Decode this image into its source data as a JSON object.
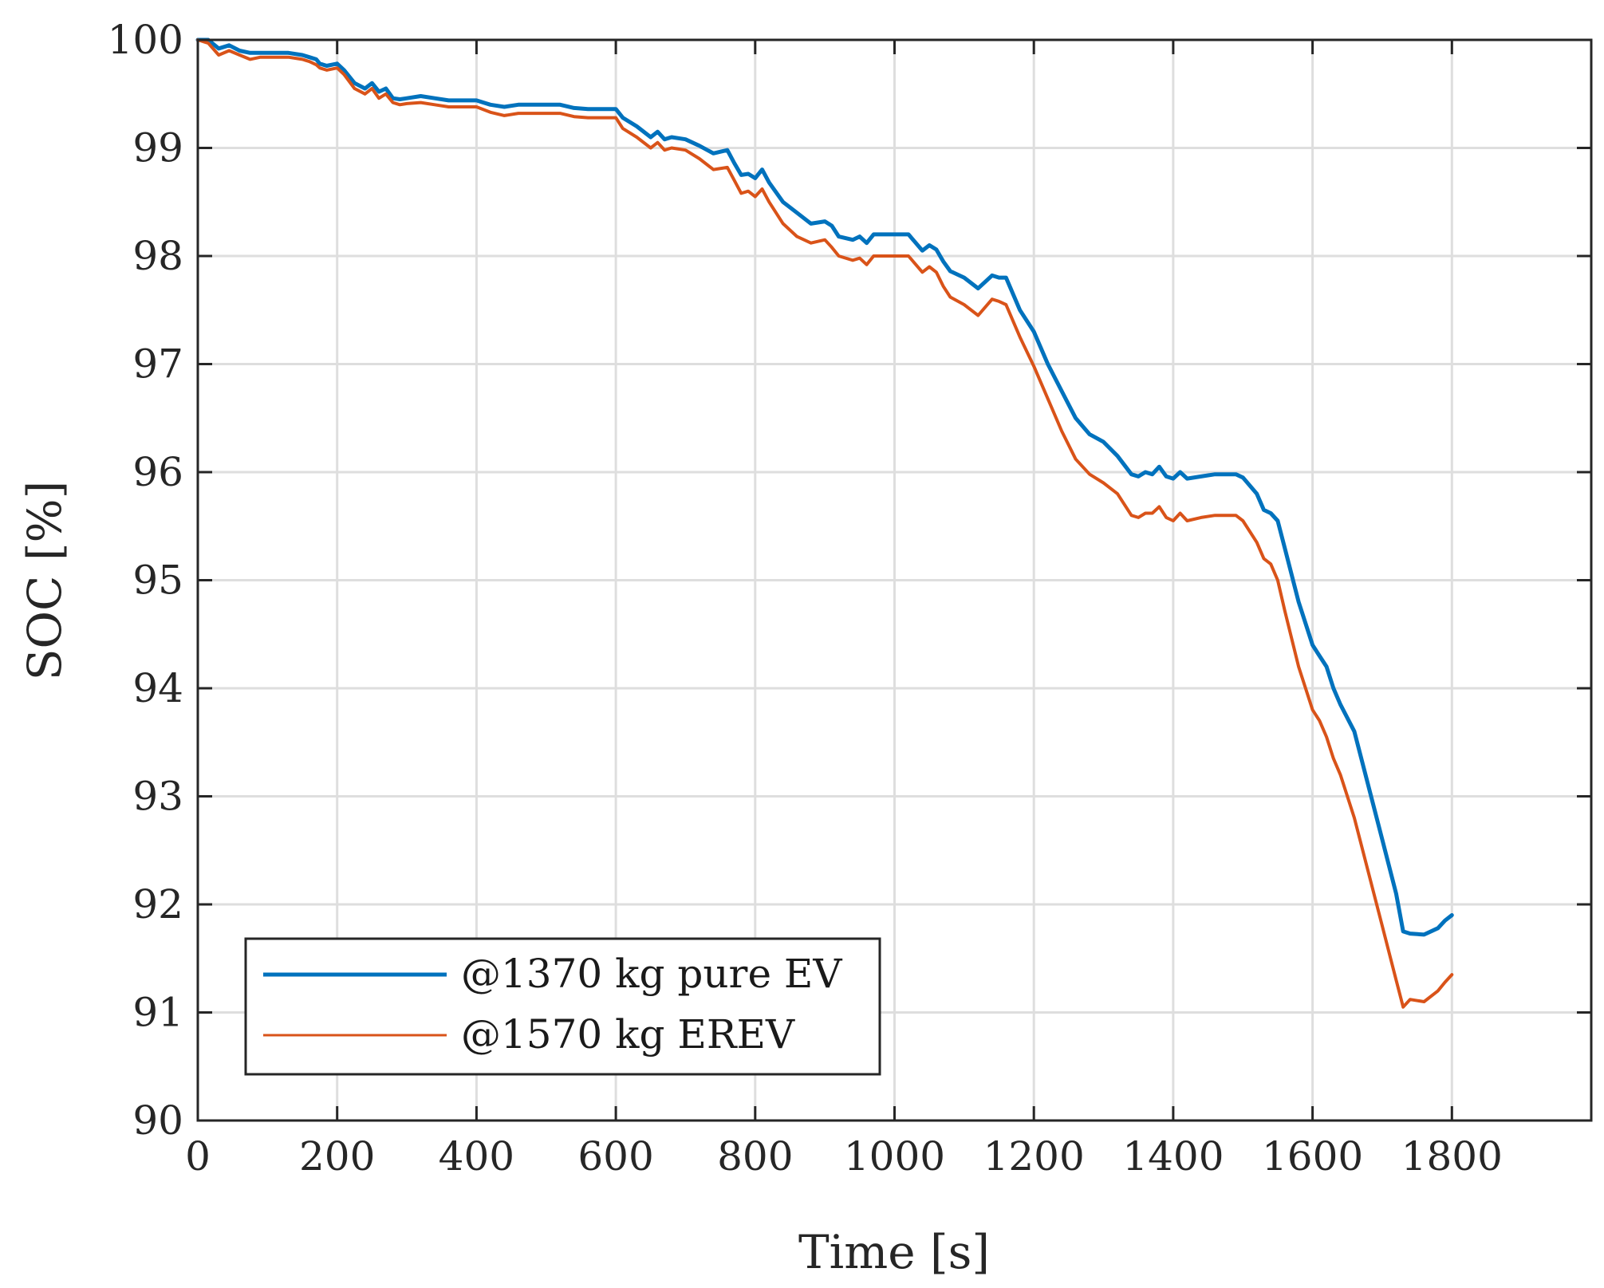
{
  "chart_data": {
    "type": "line",
    "title": "",
    "xlabel": "Time [s]",
    "ylabel": "SOC [%]",
    "xlim": [
      0,
      2000
    ],
    "ylim": [
      90,
      100
    ],
    "xticks": [
      0,
      200,
      400,
      600,
      800,
      1000,
      1200,
      1400,
      1600,
      1800
    ],
    "xtick_labels": [
      "0",
      "200",
      "400",
      "600",
      "800",
      "1000",
      "1200",
      "1400",
      "1600",
      "1800"
    ],
    "yticks": [
      90,
      91,
      92,
      93,
      94,
      95,
      96,
      97,
      98,
      99,
      100
    ],
    "ytick_labels": [
      "90",
      "91",
      "92",
      "93",
      "94",
      "95",
      "96",
      "97",
      "98",
      "99",
      "100"
    ],
    "grid": true,
    "legend_position": "bottom-left",
    "series": [
      {
        "name": "@1370 kg pure EV",
        "color": "#0072BD",
        "x": [
          0,
          15,
          30,
          45,
          60,
          75,
          90,
          100,
          130,
          150,
          160,
          170,
          175,
          185,
          200,
          210,
          225,
          240,
          250,
          260,
          270,
          280,
          290,
          300,
          320,
          340,
          360,
          380,
          400,
          420,
          440,
          460,
          500,
          520,
          540,
          560,
          580,
          600,
          610,
          630,
          650,
          660,
          670,
          680,
          700,
          720,
          740,
          760,
          770,
          780,
          790,
          800,
          810,
          820,
          840,
          860,
          880,
          900,
          910,
          920,
          940,
          950,
          960,
          970,
          980,
          1000,
          1020,
          1040,
          1050,
          1060,
          1070,
          1080,
          1100,
          1120,
          1140,
          1150,
          1160,
          1180,
          1200,
          1220,
          1240,
          1260,
          1280,
          1300,
          1320,
          1340,
          1350,
          1360,
          1370,
          1380,
          1390,
          1400,
          1410,
          1420,
          1440,
          1460,
          1480,
          1490,
          1500,
          1520,
          1530,
          1540,
          1550,
          1560,
          1580,
          1600,
          1610,
          1620,
          1630,
          1640,
          1660,
          1680,
          1700,
          1720,
          1730,
          1740,
          1760,
          1780,
          1790,
          1800
        ],
        "y": [
          100,
          100,
          99.92,
          99.95,
          99.9,
          99.88,
          99.88,
          99.88,
          99.88,
          99.86,
          99.84,
          99.82,
          99.78,
          99.76,
          99.78,
          99.72,
          99.6,
          99.55,
          99.6,
          99.52,
          99.55,
          99.46,
          99.45,
          99.46,
          99.48,
          99.46,
          99.44,
          99.44,
          99.44,
          99.4,
          99.38,
          99.4,
          99.4,
          99.4,
          99.37,
          99.36,
          99.36,
          99.36,
          99.28,
          99.2,
          99.1,
          99.15,
          99.08,
          99.1,
          99.08,
          99.02,
          98.95,
          98.98,
          98.86,
          98.75,
          98.76,
          98.72,
          98.8,
          98.68,
          98.5,
          98.4,
          98.3,
          98.32,
          98.28,
          98.18,
          98.15,
          98.18,
          98.12,
          98.2,
          98.2,
          98.2,
          98.2,
          98.05,
          98.1,
          98.06,
          97.95,
          97.86,
          97.8,
          97.7,
          97.82,
          97.8,
          97.8,
          97.5,
          97.3,
          97.0,
          96.75,
          96.5,
          96.35,
          96.28,
          96.15,
          95.98,
          95.96,
          96.0,
          95.98,
          96.05,
          95.96,
          95.94,
          96.0,
          95.94,
          95.96,
          95.98,
          95.98,
          95.98,
          95.95,
          95.8,
          95.65,
          95.62,
          95.55,
          95.3,
          94.8,
          94.4,
          94.3,
          94.2,
          94.0,
          93.85,
          93.6,
          93.1,
          92.6,
          92.1,
          91.75,
          91.73,
          91.72,
          91.78,
          91.85,
          91.9
        ]
      },
      {
        "name": "@1570 kg EREV",
        "color": "#D95319",
        "x": [
          0,
          15,
          30,
          45,
          60,
          75,
          90,
          100,
          130,
          150,
          160,
          170,
          175,
          185,
          200,
          210,
          225,
          240,
          250,
          260,
          270,
          280,
          290,
          300,
          320,
          340,
          360,
          380,
          400,
          420,
          440,
          460,
          500,
          520,
          540,
          560,
          580,
          600,
          610,
          630,
          650,
          660,
          670,
          680,
          700,
          720,
          740,
          760,
          770,
          780,
          790,
          800,
          810,
          820,
          840,
          860,
          880,
          900,
          910,
          920,
          940,
          950,
          960,
          970,
          980,
          1000,
          1020,
          1040,
          1050,
          1060,
          1070,
          1080,
          1100,
          1120,
          1140,
          1150,
          1160,
          1180,
          1200,
          1220,
          1240,
          1260,
          1280,
          1300,
          1320,
          1340,
          1350,
          1360,
          1370,
          1380,
          1390,
          1400,
          1410,
          1420,
          1440,
          1460,
          1480,
          1490,
          1500,
          1520,
          1530,
          1540,
          1550,
          1560,
          1580,
          1600,
          1610,
          1620,
          1630,
          1640,
          1660,
          1680,
          1700,
          1720,
          1730,
          1740,
          1760,
          1780,
          1790,
          1800
        ],
        "y": [
          100,
          99.97,
          99.86,
          99.9,
          99.86,
          99.82,
          99.84,
          99.84,
          99.84,
          99.82,
          99.8,
          99.77,
          99.74,
          99.72,
          99.74,
          99.68,
          99.55,
          99.5,
          99.55,
          99.46,
          99.5,
          99.42,
          99.4,
          99.41,
          99.42,
          99.4,
          99.38,
          99.38,
          99.38,
          99.33,
          99.3,
          99.32,
          99.32,
          99.32,
          99.29,
          99.28,
          99.28,
          99.28,
          99.18,
          99.1,
          99.0,
          99.05,
          98.98,
          99.0,
          98.98,
          98.9,
          98.8,
          98.82,
          98.7,
          98.58,
          98.6,
          98.55,
          98.62,
          98.5,
          98.3,
          98.18,
          98.12,
          98.15,
          98.08,
          98.0,
          97.96,
          97.98,
          97.92,
          98.0,
          98.0,
          98.0,
          98.0,
          97.85,
          97.9,
          97.85,
          97.72,
          97.62,
          97.55,
          97.45,
          97.6,
          97.58,
          97.55,
          97.25,
          96.98,
          96.68,
          96.38,
          96.12,
          95.98,
          95.9,
          95.8,
          95.6,
          95.58,
          95.62,
          95.62,
          95.68,
          95.58,
          95.55,
          95.62,
          95.55,
          95.58,
          95.6,
          95.6,
          95.6,
          95.55,
          95.35,
          95.2,
          95.15,
          95.0,
          94.72,
          94.2,
          93.8,
          93.7,
          93.55,
          93.35,
          93.2,
          92.8,
          92.3,
          91.8,
          91.3,
          91.05,
          91.12,
          91.1,
          91.2,
          91.28,
          91.35
        ]
      }
    ]
  }
}
